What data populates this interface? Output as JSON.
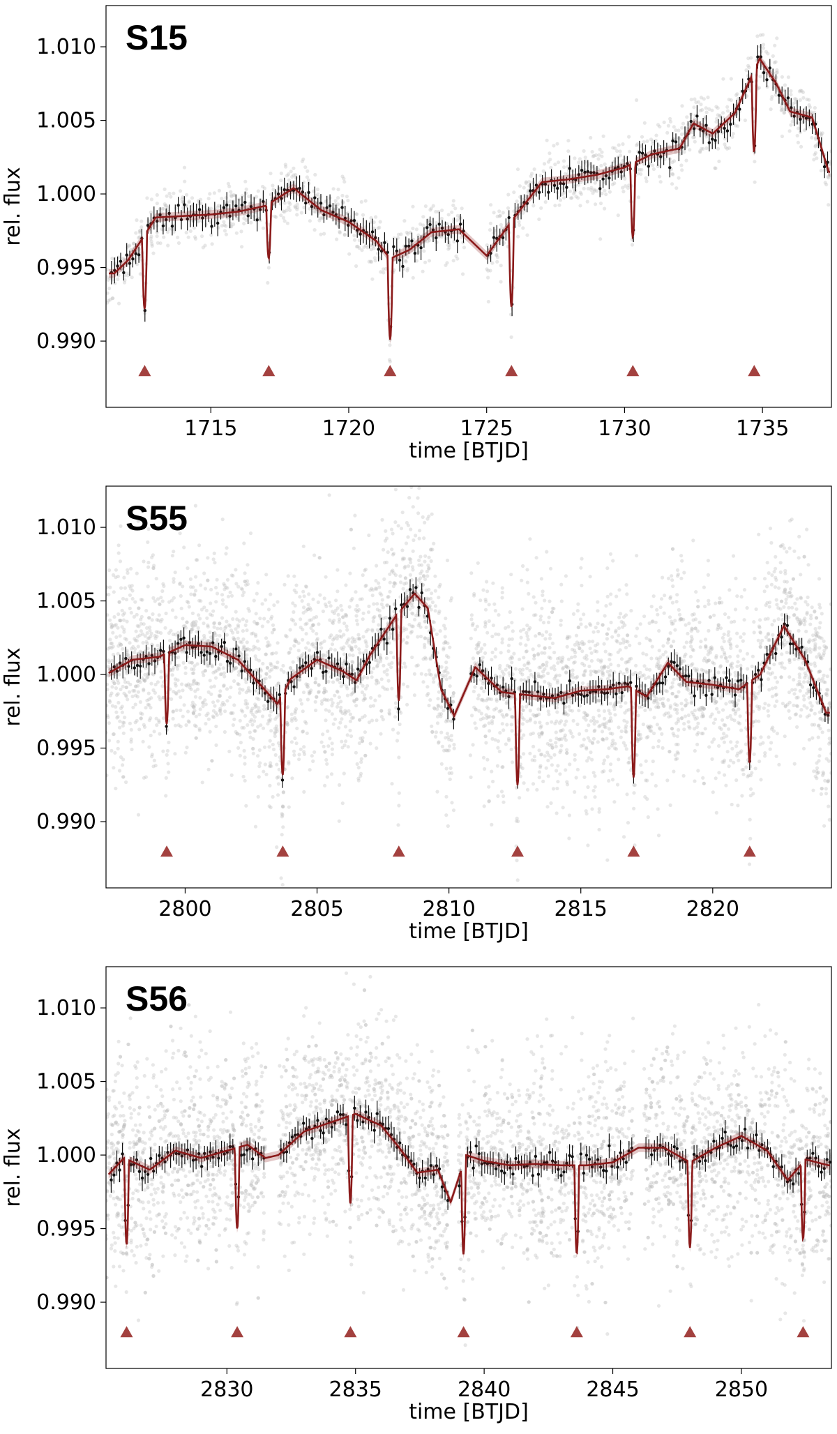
{
  "chart_data": [
    {
      "type": "scatter",
      "panel_label": "S15",
      "xlabel": "time [BTJD]",
      "ylabel": "rel. flux",
      "xlim": [
        1711.2,
        1737.5
      ],
      "ylim": [
        0.9855,
        1.0128
      ],
      "xticks": [
        1715,
        1720,
        1725,
        1730,
        1735
      ],
      "xtick_labels": [
        "1715",
        "1720",
        "1725",
        "1730",
        "1735"
      ],
      "yticks": [
        0.99,
        0.995,
        1.0,
        1.005,
        1.01
      ],
      "ytick_labels": [
        "0.990",
        "0.995",
        "1.000",
        "1.005",
        "1.010"
      ],
      "grid": false,
      "raw_scatter": "dense",
      "gaps": [
        [
          1724.2,
          1725.0
        ]
      ],
      "trend": [
        [
          1711.5,
          0.9946
        ],
        [
          1712.0,
          0.9955
        ],
        [
          1712.6,
          0.9972
        ],
        [
          1713.0,
          0.9984
        ],
        [
          1714.0,
          0.9985
        ],
        [
          1715.0,
          0.9986
        ],
        [
          1716.0,
          0.9988
        ],
        [
          1717.0,
          0.9992
        ],
        [
          1718.0,
          1.0004
        ],
        [
          1719.0,
          0.9989
        ],
        [
          1720.0,
          0.9981
        ],
        [
          1721.0,
          0.9968
        ],
        [
          1721.5,
          0.9956
        ],
        [
          1722.2,
          0.9962
        ],
        [
          1723.0,
          0.9974
        ],
        [
          1724.0,
          0.9976
        ],
        [
          1725.0,
          0.9958
        ],
        [
          1726.0,
          0.9984
        ],
        [
          1727.0,
          1.0008
        ],
        [
          1728.0,
          1.001
        ],
        [
          1729.0,
          1.0013
        ],
        [
          1730.0,
          1.0018
        ],
        [
          1731.0,
          1.0027
        ],
        [
          1732.0,
          1.0031
        ],
        [
          1732.5,
          1.0048
        ],
        [
          1733.2,
          1.0041
        ],
        [
          1734.0,
          1.0055
        ],
        [
          1734.9,
          1.0092
        ],
        [
          1735.5,
          1.0075
        ],
        [
          1736.0,
          1.0056
        ],
        [
          1736.8,
          1.0052
        ],
        [
          1737.4,
          1.0015
        ]
      ],
      "transits": [
        {
          "time": 1712.6,
          "depth": 0.005
        },
        {
          "time": 1717.1,
          "depth": 0.0037
        },
        {
          "time": 1721.5,
          "depth": 0.0055
        },
        {
          "time": 1725.9,
          "depth": 0.0058
        },
        {
          "time": 1730.3,
          "depth": 0.005
        },
        {
          "time": 1734.7,
          "depth": 0.0055
        }
      ],
      "transit_marker_flux": 0.988,
      "colors": {
        "model": "#8b1a1a",
        "marker": "#a3413f",
        "binned": "#111111",
        "raw": "#bbbbbb"
      }
    },
    {
      "type": "scatter",
      "panel_label": "S55",
      "xlabel": "time [BTJD]",
      "ylabel": "rel. flux",
      "xlim": [
        2797.0,
        2824.5
      ],
      "ylim": [
        0.9855,
        1.0128
      ],
      "xticks": [
        2800,
        2805,
        2810,
        2815,
        2820
      ],
      "xtick_labels": [
        "2800",
        "2805",
        "2810",
        "2815",
        "2820"
      ],
      "yticks": [
        0.99,
        0.995,
        1.0,
        1.005,
        1.01
      ],
      "ytick_labels": [
        "0.990",
        "0.995",
        "1.000",
        "1.005",
        "1.010"
      ],
      "grid": false,
      "raw_scatter": "dense",
      "gaps": [
        [
          2810.2,
          2810.8
        ]
      ],
      "trend": [
        [
          2797.0,
          1.0
        ],
        [
          2798.0,
          1.001
        ],
        [
          2799.0,
          1.0012
        ],
        [
          2800.0,
          1.002
        ],
        [
          2801.0,
          1.0019
        ],
        [
          2802.0,
          1.001
        ],
        [
          2803.0,
          0.999
        ],
        [
          2803.5,
          0.998
        ],
        [
          2804.0,
          0.9997
        ],
        [
          2805.0,
          1.001
        ],
        [
          2806.0,
          1.0002
        ],
        [
          2806.5,
          0.9996
        ],
        [
          2807.0,
          1.0013
        ],
        [
          2808.0,
          1.004
        ],
        [
          2808.7,
          1.0055
        ],
        [
          2809.2,
          1.0045
        ],
        [
          2809.7,
          0.999
        ],
        [
          2810.2,
          0.9972
        ],
        [
          2811.0,
          1.0005
        ],
        [
          2812.0,
          0.9988
        ],
        [
          2813.0,
          0.9986
        ],
        [
          2814.0,
          0.9984
        ],
        [
          2815.0,
          0.9989
        ],
        [
          2816.0,
          0.999
        ],
        [
          2816.8,
          0.9992
        ],
        [
          2817.5,
          0.9985
        ],
        [
          2818.3,
          1.0008
        ],
        [
          2819.0,
          0.9995
        ],
        [
          2820.0,
          0.9993
        ],
        [
          2821.0,
          0.999
        ],
        [
          2821.8,
          1.0
        ],
        [
          2822.7,
          1.0033
        ],
        [
          2823.5,
          1.001
        ],
        [
          2824.3,
          0.9974
        ]
      ],
      "transits": [
        {
          "time": 2799.3,
          "depth": 0.0048
        },
        {
          "time": 2803.7,
          "depth": 0.0055
        },
        {
          "time": 2808.1,
          "depth": 0.006
        },
        {
          "time": 2812.6,
          "depth": 0.0062
        },
        {
          "time": 2817.0,
          "depth": 0.006
        },
        {
          "time": 2821.4,
          "depth": 0.0055
        }
      ],
      "transit_marker_flux": 0.988,
      "colors": {
        "model": "#8b1a1a",
        "marker": "#a3413f",
        "binned": "#111111",
        "raw": "#bbbbbb"
      }
    },
    {
      "type": "scatter",
      "panel_label": "S56",
      "xlabel": "time [BTJD]",
      "ylabel": "rel. flux",
      "xlim": [
        2825.3,
        2853.5
      ],
      "ylim": [
        0.9855,
        1.0128
      ],
      "xticks": [
        2830,
        2835,
        2840,
        2845,
        2850
      ],
      "xtick_labels": [
        "2830",
        "2835",
        "2840",
        "2845",
        "2850"
      ],
      "yticks": [
        0.99,
        0.995,
        1.0,
        1.005,
        1.01
      ],
      "ytick_labels": [
        "0.990",
        "0.995",
        "1.000",
        "1.005",
        "1.010"
      ],
      "grid": false,
      "raw_scatter": "dense",
      "gaps": [
        [
          2831.5,
          2832.0
        ],
        [
          2838.6,
          2839.0
        ],
        [
          2845.8,
          2846.2
        ]
      ],
      "trend": [
        [
          2825.3,
          0.9985
        ],
        [
          2826.0,
          0.9998
        ],
        [
          2827.0,
          0.999
        ],
        [
          2828.0,
          1.0003
        ],
        [
          2829.0,
          0.9998
        ],
        [
          2830.0,
          1.0003
        ],
        [
          2830.8,
          1.0007
        ],
        [
          2831.5,
          0.9998
        ],
        [
          2832.0,
          1.0
        ],
        [
          2833.0,
          1.0016
        ],
        [
          2834.0,
          1.0022
        ],
        [
          2835.0,
          1.0028
        ],
        [
          2836.0,
          1.002
        ],
        [
          2836.7,
          1.0005
        ],
        [
          2837.4,
          0.9988
        ],
        [
          2838.2,
          0.999
        ],
        [
          2838.7,
          0.9968
        ],
        [
          2839.3,
          1.0
        ],
        [
          2840.0,
          0.9996
        ],
        [
          2841.0,
          0.9993
        ],
        [
          2842.0,
          0.9994
        ],
        [
          2843.0,
          0.9993
        ],
        [
          2844.0,
          0.9993
        ],
        [
          2845.0,
          0.9995
        ],
        [
          2846.0,
          1.0005
        ],
        [
          2847.0,
          1.0005
        ],
        [
          2848.0,
          0.9995
        ],
        [
          2849.0,
          1.0005
        ],
        [
          2850.0,
          1.0013
        ],
        [
          2851.0,
          1.0003
        ],
        [
          2851.8,
          0.9983
        ],
        [
          2852.5,
          0.9997
        ],
        [
          2853.4,
          0.9993
        ]
      ],
      "transits": [
        {
          "time": 2826.1,
          "depth": 0.0058
        },
        {
          "time": 2830.4,
          "depth": 0.0055
        },
        {
          "time": 2834.8,
          "depth": 0.006
        },
        {
          "time": 2839.2,
          "depth": 0.0062
        },
        {
          "time": 2843.6,
          "depth": 0.006
        },
        {
          "time": 2848.0,
          "depth": 0.0058
        },
        {
          "time": 2852.4,
          "depth": 0.0052
        }
      ],
      "transit_marker_flux": 0.988,
      "colors": {
        "model": "#8b1a1a",
        "marker": "#a3413f",
        "binned": "#111111",
        "raw": "#bbbbbb"
      }
    }
  ]
}
